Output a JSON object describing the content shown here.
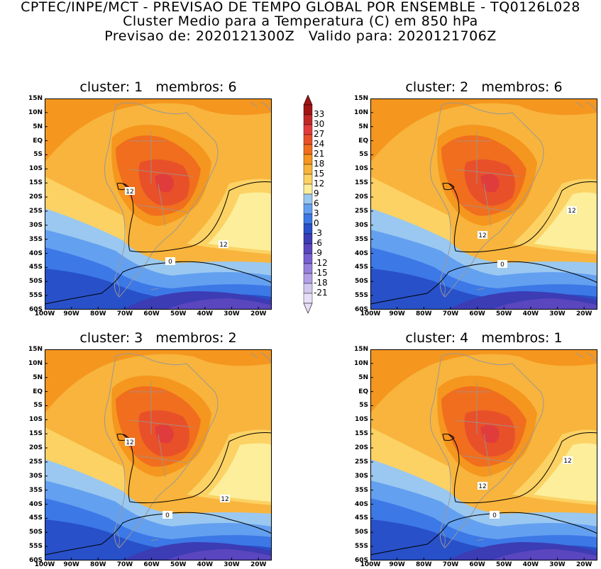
{
  "header": {
    "line1": "CPTEC/INPE/MCT - PREVISAO DE TEMPO GLOBAL POR ENSEMBLE - TQ0126L028",
    "line2": "Cluster Medio para a Temperatura (C) em 850 hPa",
    "line3": "Previsao de: 2020121300Z   Valido para: 2020121706Z"
  },
  "panels": [
    {
      "title": "cluster: 1   membros: 6",
      "contour_labels": [
        "12",
        "12",
        "0"
      ]
    },
    {
      "title": "cluster: 2   membros: 6",
      "contour_labels": [
        "12",
        "12",
        "0"
      ]
    },
    {
      "title": "cluster: 3   membros: 2",
      "contour_labels": [
        "12",
        "12",
        "0"
      ]
    },
    {
      "title": "cluster: 4   membros: 1",
      "contour_labels": [
        "12",
        "12",
        "0"
      ]
    }
  ],
  "axes": {
    "lat_ticks": [
      "15N",
      "10N",
      "5N",
      "EQ",
      "5S",
      "10S",
      "15S",
      "20S",
      "25S",
      "30S",
      "35S",
      "40S",
      "45S",
      "50S",
      "55S",
      "60S"
    ],
    "lon_ticks": [
      "100W",
      "90W",
      "80W",
      "70W",
      "60W",
      "50W",
      "40W",
      "30W",
      "20W"
    ]
  },
  "colorbar": {
    "levels": [
      "33",
      "30",
      "27",
      "24",
      "21",
      "18",
      "15",
      "12",
      "9",
      "6",
      "3",
      "0",
      "-3",
      "-6",
      "-9",
      "-12",
      "-15",
      "-18",
      "-21"
    ],
    "colors": [
      "#a01414",
      "#c02828",
      "#e03c3c",
      "#e8502a",
      "#f06e1e",
      "#f5961e",
      "#f8b43c",
      "#fcd264",
      "#fcee9a",
      "#9ac8f0",
      "#64a0f0",
      "#3c78e6",
      "#2850c8",
      "#3c3cb4",
      "#5a46be",
      "#7860d2",
      "#9682dc",
      "#b4a0e6",
      "#d2c8f0",
      "#e8e0f8"
    ]
  },
  "colors": {
    "map_border": "#999999",
    "contour": "#000000",
    "background": "#ffffff"
  }
}
